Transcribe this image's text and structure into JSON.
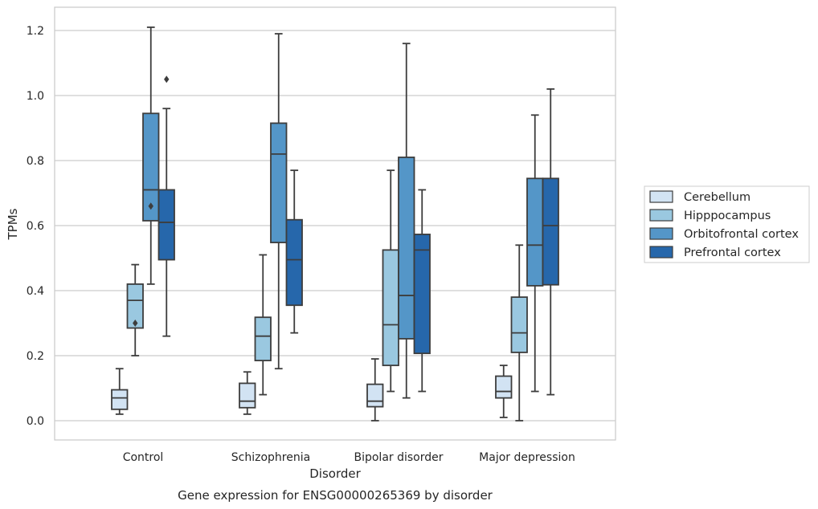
{
  "chart_data": {
    "type": "box",
    "title": "",
    "caption": "Gene expression for ENSG00000265369 by disorder",
    "xlabel": "Disorder",
    "ylabel": "TPMs",
    "ylim": [
      -0.06,
      1.27
    ],
    "yticks": [
      "0.0",
      "0.2",
      "0.4",
      "0.6",
      "0.8",
      "1.0",
      "1.2"
    ],
    "grid": "horizontal",
    "legend_position": "right",
    "categories": [
      "Control",
      "Schizophrenia",
      "Bipolar disorder",
      "Major depression"
    ],
    "series": [
      {
        "name": "Cerebellum",
        "color": "#d2e3f3",
        "boxes": [
          {
            "whislo": 0.02,
            "q1": 0.035,
            "med": 0.07,
            "q3": 0.095,
            "whishi": 0.16,
            "fliers": []
          },
          {
            "whislo": 0.02,
            "q1": 0.04,
            "med": 0.06,
            "q3": 0.115,
            "whishi": 0.15,
            "fliers": []
          },
          {
            "whislo": 0.0,
            "q1": 0.043,
            "med": 0.06,
            "q3": 0.112,
            "whishi": 0.19,
            "fliers": []
          },
          {
            "whislo": 0.01,
            "q1": 0.07,
            "med": 0.09,
            "q3": 0.137,
            "whishi": 0.17,
            "fliers": []
          }
        ]
      },
      {
        "name": "Hipppocampus",
        "color": "#9ac8e0",
        "boxes": [
          {
            "whislo": 0.2,
            "q1": 0.285,
            "med": 0.37,
            "q3": 0.42,
            "whishi": 0.48,
            "fliers": [
              0.3
            ]
          },
          {
            "whislo": 0.08,
            "q1": 0.185,
            "med": 0.26,
            "q3": 0.318,
            "whishi": 0.51,
            "fliers": []
          },
          {
            "whislo": 0.09,
            "q1": 0.17,
            "med": 0.295,
            "q3": 0.525,
            "whishi": 0.77,
            "fliers": []
          },
          {
            "whislo": 0.0,
            "q1": 0.21,
            "med": 0.27,
            "q3": 0.38,
            "whishi": 0.54,
            "fliers": []
          }
        ]
      },
      {
        "name": "Orbitofrontal cortex",
        "color": "#5496c8",
        "boxes": [
          {
            "whislo": 0.42,
            "q1": 0.615,
            "med": 0.71,
            "q3": 0.945,
            "whishi": 1.21,
            "fliers": [
              0.66
            ]
          },
          {
            "whislo": 0.16,
            "q1": 0.548,
            "med": 0.82,
            "q3": 0.915,
            "whishi": 1.19,
            "fliers": []
          },
          {
            "whislo": 0.07,
            "q1": 0.252,
            "med": 0.385,
            "q3": 0.81,
            "whishi": 1.16,
            "fliers": []
          },
          {
            "whislo": 0.09,
            "q1": 0.415,
            "med": 0.54,
            "q3": 0.745,
            "whishi": 0.94,
            "fliers": []
          }
        ]
      },
      {
        "name": "Prefrontal cortex",
        "color": "#2667ab",
        "boxes": [
          {
            "whislo": 0.26,
            "q1": 0.495,
            "med": 0.61,
            "q3": 0.71,
            "whishi": 0.96,
            "fliers": [
              1.05
            ]
          },
          {
            "whislo": 0.27,
            "q1": 0.355,
            "med": 0.495,
            "q3": 0.618,
            "whishi": 0.77,
            "fliers": []
          },
          {
            "whislo": 0.09,
            "q1": 0.207,
            "med": 0.525,
            "q3": 0.573,
            "whishi": 0.71,
            "fliers": []
          },
          {
            "whislo": 0.08,
            "q1": 0.418,
            "med": 0.6,
            "q3": 0.745,
            "whishi": 1.02,
            "fliers": []
          }
        ]
      }
    ]
  }
}
